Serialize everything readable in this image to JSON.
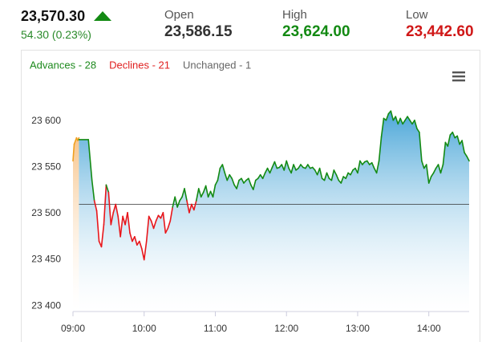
{
  "header": {
    "price": "23,570.30",
    "change": "54.30 (0.23%)",
    "open_label": "Open",
    "open": "23,586.15",
    "high_label": "High",
    "high": "23,624.00",
    "low_label": "Low",
    "low": "23,442.60"
  },
  "chart_data": {
    "type": "line",
    "breadth": [
      {
        "text": "Advances - 28",
        "color": "#1e8a1e"
      },
      {
        "text": "Declines - 21",
        "color": "#e02020"
      },
      {
        "text": "Unchanged - 1",
        "color": "#666666"
      }
    ],
    "xlim": [
      540,
      874
    ],
    "xticks": [
      {
        "value": 540,
        "label": "09:00"
      },
      {
        "value": 600,
        "label": "10:00"
      },
      {
        "value": 660,
        "label": "11:00"
      },
      {
        "value": 720,
        "label": "12:00"
      },
      {
        "value": 780,
        "label": "13:00"
      },
      {
        "value": 840,
        "label": "14:00"
      }
    ],
    "ylim": [
      23394,
      23646
    ],
    "yticks": [
      {
        "value": 23400,
        "label": "23 400"
      },
      {
        "value": 23450,
        "label": "23 450"
      },
      {
        "value": 23500,
        "label": "23 500"
      },
      {
        "value": 23550,
        "label": "23 550"
      },
      {
        "value": 23600,
        "label": "23 600"
      }
    ],
    "reference": 23510,
    "series": [
      {
        "color": "#f0a020",
        "fill": "#f7c48a",
        "x": [
          540,
          541,
          543,
          544,
          545
        ],
        "values": [
          23557,
          23575,
          23582,
          23579,
          23582
        ]
      },
      {
        "color": "#138a13",
        "color_below": "#e8161b",
        "fill": "#4aa6d8",
        "x": [
          545,
          553,
          556,
          558,
          560,
          562,
          564,
          566,
          568,
          570,
          572,
          574,
          576,
          578,
          580,
          582,
          584,
          586,
          588,
          590,
          592,
          594,
          596,
          598,
          600,
          602,
          604,
          606,
          608,
          610,
          612,
          614,
          616,
          618,
          620,
          622,
          624,
          626,
          628,
          630,
          632,
          634,
          636,
          638,
          640,
          642,
          644,
          646,
          648,
          650,
          652,
          654,
          656,
          658,
          660,
          662,
          664,
          666,
          668,
          670,
          672,
          674,
          676,
          678,
          680,
          682,
          684,
          686,
          688,
          690,
          692,
          694,
          696,
          698,
          700,
          702,
          704,
          706,
          708,
          710,
          712,
          714,
          716,
          718,
          720,
          722,
          724,
          726,
          728,
          730,
          732,
          734,
          736,
          738,
          740,
          742,
          744,
          746,
          748,
          750,
          752,
          754,
          756,
          758,
          760,
          762,
          764,
          766,
          768,
          770,
          772,
          774,
          776,
          778,
          780,
          782,
          784,
          786,
          788,
          790,
          792,
          794,
          796,
          798,
          800,
          802,
          804,
          806,
          808,
          810,
          812,
          814,
          816,
          818,
          820,
          822,
          824,
          826,
          828,
          830,
          832,
          834,
          836,
          838,
          840,
          842,
          844,
          846,
          848,
          850,
          852,
          854,
          856,
          858,
          860,
          862,
          864,
          866,
          868,
          870,
          872,
          874
        ],
        "values": [
          23580,
          23580,
          23536,
          23514,
          23503,
          23470,
          23464,
          23488,
          23531,
          23523,
          23488,
          23501,
          23510,
          23497,
          23475,
          23497,
          23488,
          23501,
          23479,
          23470,
          23475,
          23466,
          23470,
          23462,
          23450,
          23470,
          23497,
          23492,
          23484,
          23492,
          23498,
          23495,
          23501,
          23479,
          23484,
          23492,
          23507,
          23518,
          23507,
          23514,
          23518,
          23527,
          23514,
          23501,
          23510,
          23504,
          23514,
          23527,
          23518,
          23523,
          23530,
          23518,
          23524,
          23518,
          23531,
          23536,
          23549,
          23553,
          23544,
          23536,
          23542,
          23538,
          23531,
          23527,
          23536,
          23538,
          23533,
          23536,
          23538,
          23531,
          23526,
          23536,
          23538,
          23542,
          23538,
          23544,
          23549,
          23544,
          23550,
          23556,
          23549,
          23550,
          23553,
          23547,
          23557,
          23549,
          23544,
          23553,
          23547,
          23549,
          23553,
          23550,
          23549,
          23553,
          23549,
          23550,
          23547,
          23542,
          23549,
          23538,
          23536,
          23544,
          23538,
          23536,
          23547,
          23542,
          23536,
          23533,
          23540,
          23538,
          23544,
          23542,
          23547,
          23549,
          23544,
          23557,
          23553,
          23556,
          23557,
          23553,
          23555,
          23549,
          23544,
          23557,
          23583,
          23603,
          23601,
          23608,
          23611,
          23601,
          23605,
          23597,
          23603,
          23597,
          23601,
          23605,
          23601,
          23597,
          23601,
          23592,
          23588,
          23557,
          23549,
          23553,
          23533,
          23540,
          23544,
          23549,
          23553,
          23544,
          23553,
          23577,
          23573,
          23585,
          23588,
          23582,
          23584,
          23575,
          23579,
          23566,
          23562,
          23557
        ]
      }
    ]
  }
}
